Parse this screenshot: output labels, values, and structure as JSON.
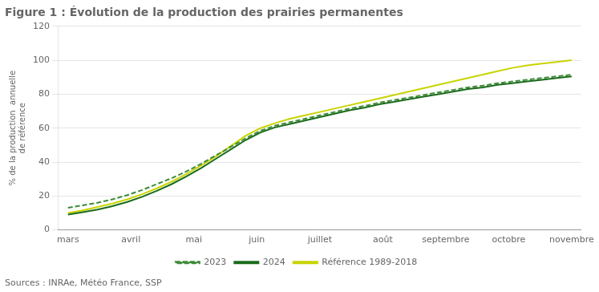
{
  "chart_data": {
    "type": "line",
    "title": "Figure 1 : Évolution de la production des prairies permanentes",
    "ylabel": [
      "% de la production  annuelle",
      "de référence"
    ],
    "source": "Sources : INRAe, Météo France, SSP",
    "x": [
      0,
      0.235294,
      0.470588,
      0.705882,
      0.941176,
      1.176471,
      1.411765,
      1.647059,
      1.882353,
      2.117647,
      2.352941,
      2.588235,
      2.823529,
      3.058824,
      3.294118,
      3.529412,
      3.764706,
      4,
      4.235294,
      4.470588,
      4.705882,
      4.941176,
      5.176471,
      5.411765,
      5.647059,
      5.882353,
      6.117647,
      6.352941,
      6.588235,
      6.823529,
      7.058824,
      7.294118,
      7.529412,
      7.764706,
      8
    ],
    "xlim": [
      -0.15,
      8.15
    ],
    "xticks": [
      {
        "value": 0,
        "label": "mars"
      },
      {
        "value": 1,
        "label": "avril"
      },
      {
        "value": 2,
        "label": "mai"
      },
      {
        "value": 3,
        "label": "juin"
      },
      {
        "value": 4,
        "label": "juillet"
      },
      {
        "value": 5,
        "label": "août"
      },
      {
        "value": 6,
        "label": "septembre"
      },
      {
        "value": 7,
        "label": "octobre"
      },
      {
        "value": 8,
        "label": "novembre"
      }
    ],
    "ylim": [
      0,
      120
    ],
    "yticks": [
      0,
      20,
      40,
      60,
      80,
      100,
      120
    ],
    "grid": "y",
    "legend": "bottom",
    "series": [
      {
        "name": "2023",
        "color": "#3d8b37",
        "line_style": "dashed",
        "values": [
          13.0,
          14.5,
          16.0,
          18.0,
          20.5,
          23.5,
          27.0,
          30.5,
          34.5,
          39.0,
          44.0,
          49.0,
          54.0,
          58.5,
          61.5,
          63.5,
          65.5,
          67.5,
          69.5,
          71.5,
          73.0,
          75.0,
          76.5,
          78.0,
          79.5,
          81.0,
          82.5,
          84.0,
          85.0,
          86.5,
          87.5,
          88.5,
          89.5,
          90.5,
          91.5
        ]
      },
      {
        "name": "2024",
        "color": "#1a6b1a",
        "line_style": "solid",
        "values": [
          9.0,
          10.5,
          12.0,
          14.0,
          16.5,
          19.5,
          23.0,
          27.0,
          31.5,
          36.5,
          42.0,
          47.5,
          53.0,
          57.5,
          60.5,
          62.5,
          64.5,
          66.5,
          68.5,
          70.5,
          72.0,
          74.0,
          75.5,
          77.0,
          78.5,
          80.0,
          81.5,
          83.0,
          84.0,
          85.5,
          86.5,
          87.5,
          88.5,
          89.5,
          90.5
        ]
      },
      {
        "name": "Référence 1989-2018",
        "color": "#c8d400",
        "line_style": "solid",
        "values": [
          10.0,
          11.5,
          13.5,
          15.5,
          18.0,
          21.0,
          24.5,
          28.5,
          33.0,
          38.0,
          43.5,
          49.5,
          55.5,
          60.0,
          63.0,
          65.5,
          67.5,
          69.5,
          71.5,
          73.5,
          75.5,
          77.5,
          79.5,
          81.5,
          83.5,
          85.5,
          87.5,
          89.5,
          91.5,
          93.5,
          95.5,
          97.0,
          98.0,
          99.0,
          100.0
        ]
      }
    ]
  }
}
